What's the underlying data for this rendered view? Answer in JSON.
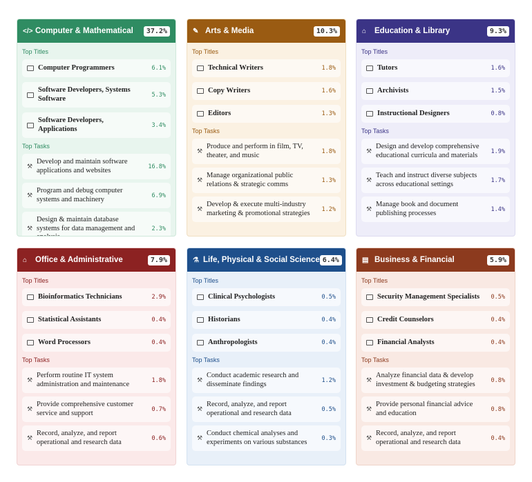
{
  "labels": {
    "top_titles": "Top Titles",
    "top_tasks": "Top Tasks"
  },
  "cards": [
    {
      "title": "Computer & Mathematical",
      "share": "37.2%",
      "titles": [
        {
          "name": "Computer Programmers",
          "share": "6.1%"
        },
        {
          "name": "Software Developers, Systems Software",
          "share": "5.3%"
        },
        {
          "name": "Software Developers, Applications",
          "share": "3.4%"
        }
      ],
      "tasks": [
        {
          "name": "Develop and maintain software applications and websites",
          "share": "16.8%"
        },
        {
          "name": "Program and debug computer systems and machinery",
          "share": "6.9%"
        },
        {
          "name": "Design & maintain database systems for data management and analysis",
          "share": "2.3%"
        }
      ]
    },
    {
      "title": "Arts & Media",
      "share": "10.3%",
      "titles": [
        {
          "name": "Technical Writers",
          "share": "1.8%"
        },
        {
          "name": "Copy Writers",
          "share": "1.6%"
        },
        {
          "name": "Editors",
          "share": "1.3%"
        }
      ],
      "tasks": [
        {
          "name": "Produce and perform in film, TV, theater, and music",
          "share": "1.8%"
        },
        {
          "name": "Manage organizational public relations & strategic comms",
          "share": "1.3%"
        },
        {
          "name": "Develop & execute multi-industry marketing & promotional strategies",
          "share": "1.2%"
        }
      ]
    },
    {
      "title": "Education & Library",
      "share": "9.3%",
      "titles": [
        {
          "name": "Tutors",
          "share": "1.6%"
        },
        {
          "name": "Archivists",
          "share": "1.5%"
        },
        {
          "name": "Instructional Designers",
          "share": "0.8%"
        }
      ],
      "tasks": [
        {
          "name": "Design and develop comprehensive educational curricula and materials",
          "share": "1.9%"
        },
        {
          "name": "Teach and instruct diverse subjects across educational settings",
          "share": "1.7%"
        },
        {
          "name": "Manage book and document publishing processes",
          "share": "1.4%"
        }
      ]
    },
    {
      "title": "Office & Administrative",
      "share": "7.9%",
      "titles": [
        {
          "name": "Bioinformatics Technicians",
          "share": "2.9%"
        },
        {
          "name": "Statistical Assistants",
          "share": "0.4%"
        },
        {
          "name": "Word Processors",
          "share": "0.4%"
        }
      ],
      "tasks": [
        {
          "name": "Perform routine IT system administration and maintenance",
          "share": "1.8%"
        },
        {
          "name": "Provide comprehensive customer service and support",
          "share": "0.7%"
        },
        {
          "name": "Record, analyze, and report operational and research data",
          "share": "0.6%"
        }
      ]
    },
    {
      "title": "Life, Physical & Social Science",
      "share": "6.4%",
      "titles": [
        {
          "name": "Clinical Psychologists",
          "share": "0.5%"
        },
        {
          "name": "Historians",
          "share": "0.4%"
        },
        {
          "name": "Anthropologists",
          "share": "0.4%"
        }
      ],
      "tasks": [
        {
          "name": "Conduct academic research and disseminate findings",
          "share": "1.2%"
        },
        {
          "name": "Record, analyze, and report operational and research data",
          "share": "0.5%"
        },
        {
          "name": "Conduct chemical analyses and experiments on various substances",
          "share": "0.3%"
        }
      ]
    },
    {
      "title": "Business & Financial",
      "share": "5.9%",
      "titles": [
        {
          "name": "Security Management Specialists",
          "share": "0.5%"
        },
        {
          "name": "Credit Counselors",
          "share": "0.4%"
        },
        {
          "name": "Financial Analysts",
          "share": "0.4%"
        }
      ],
      "tasks": [
        {
          "name": "Analyze financial data & develop investment & budgeting strategies",
          "share": "0.8%"
        },
        {
          "name": "Provide personal financial advice and education",
          "share": "0.8%"
        },
        {
          "name": "Record, analyze, and report operational and research data",
          "share": "0.4%"
        }
      ]
    }
  ]
}
